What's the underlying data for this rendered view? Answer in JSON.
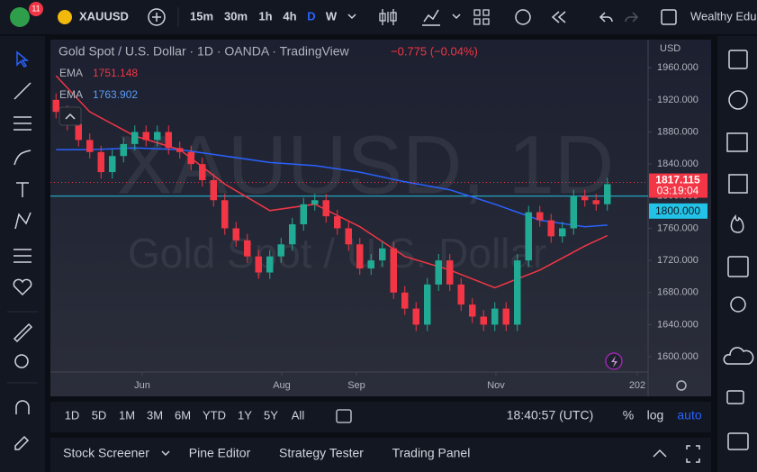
{
  "toolbar": {
    "badge": "11",
    "symbol": "XAUUSD",
    "intervals": [
      "15m",
      "30m",
      "1h",
      "4h",
      "D",
      "W"
    ],
    "account": "Wealthy Edu"
  },
  "chart_header": {
    "title": "Gold Spot / U.S. Dollar · 1D · OANDA · TradingView",
    "change": "−0.775 (−0.04%)",
    "currency": "USD",
    "watermark": [
      "XAUUSD, 1D",
      "Gold Spot / U.S. Dollar"
    ],
    "legend": [
      {
        "name": "EMA",
        "value": "1751.148"
      },
      {
        "name": "EMA",
        "value": "1763.902"
      }
    ]
  },
  "chart_data": {
    "type": "candlestick",
    "up_color": "#22ab94",
    "down_color": "#f23645",
    "open": [
      1920,
      1905,
      1890,
      1870,
      1855,
      1830,
      1850,
      1865,
      1880,
      1870,
      1880,
      1860,
      1855,
      1840,
      1820,
      1795,
      1760,
      1745,
      1725,
      1705,
      1725,
      1740,
      1765,
      1790,
      1795,
      1775,
      1760,
      1740,
      1710,
      1720,
      1735,
      1680,
      1660,
      1640,
      1690,
      1720,
      1690,
      1665,
      1650,
      1640,
      1660,
      1640,
      1720,
      1780,
      1770,
      1750,
      1760,
      1800,
      1795,
      1790
    ],
    "high": [
      1928,
      1913,
      1898,
      1878,
      1863,
      1858,
      1873,
      1888,
      1888,
      1888,
      1888,
      1868,
      1863,
      1848,
      1828,
      1803,
      1768,
      1753,
      1733,
      1733,
      1748,
      1773,
      1798,
      1803,
      1803,
      1783,
      1768,
      1748,
      1728,
      1743,
      1743,
      1688,
      1668,
      1698,
      1728,
      1728,
      1698,
      1673,
      1658,
      1668,
      1668,
      1728,
      1788,
      1788,
      1778,
      1768,
      1808,
      1808,
      1803,
      1823
    ],
    "low": [
      1897,
      1882,
      1862,
      1847,
      1822,
      1822,
      1842,
      1857,
      1862,
      1862,
      1852,
      1847,
      1832,
      1812,
      1787,
      1752,
      1737,
      1717,
      1697,
      1697,
      1717,
      1732,
      1757,
      1782,
      1767,
      1752,
      1732,
      1702,
      1702,
      1712,
      1672,
      1652,
      1632,
      1632,
      1682,
      1682,
      1657,
      1642,
      1632,
      1632,
      1632,
      1632,
      1712,
      1762,
      1742,
      1742,
      1752,
      1787,
      1782,
      1782
    ],
    "close": [
      1905,
      1890,
      1870,
      1855,
      1830,
      1850,
      1865,
      1880,
      1870,
      1880,
      1860,
      1855,
      1840,
      1820,
      1795,
      1760,
      1745,
      1725,
      1705,
      1725,
      1740,
      1765,
      1790,
      1795,
      1775,
      1760,
      1740,
      1710,
      1720,
      1735,
      1680,
      1660,
      1640,
      1690,
      1720,
      1690,
      1665,
      1650,
      1640,
      1660,
      1640,
      1720,
      1780,
      1770,
      1750,
      1760,
      1800,
      1795,
      1790,
      1815
    ],
    "series": [
      {
        "name": "EMA",
        "color": "#f23645",
        "x": [
          0,
          3,
          7,
          11,
          15,
          19,
          23,
          27,
          31,
          35,
          39,
          43,
          47,
          49
        ],
        "values": [
          1950,
          1905,
          1875,
          1858,
          1815,
          1782,
          1790,
          1762,
          1725,
          1708,
          1686,
          1708,
          1738,
          1751
        ]
      },
      {
        "name": "EMA",
        "color": "#2962ff",
        "x": [
          0,
          3,
          7,
          11,
          15,
          19,
          23,
          27,
          31,
          35,
          39,
          43,
          47,
          49
        ],
        "values": [
          1858,
          1858,
          1860,
          1858,
          1850,
          1842,
          1838,
          1830,
          1818,
          1808,
          1790,
          1770,
          1762,
          1764
        ]
      }
    ],
    "xlim": [
      -0.5,
      52.62
    ],
    "xticks": [
      {
        "value": 7.66,
        "label": "Jun"
      },
      {
        "value": 20.06,
        "label": "Aug"
      },
      {
        "value": 26.7,
        "label": "Sep"
      },
      {
        "value": 39.1,
        "label": "Nov"
      },
      {
        "value": 51.66,
        "label": "202"
      }
    ],
    "ylim": [
      1581,
      1995
    ],
    "yticks": [
      {
        "value": 1600,
        "label": "1600.000"
      },
      {
        "value": 1640,
        "label": "1640.000"
      },
      {
        "value": 1680,
        "label": "1680.000"
      },
      {
        "value": 1720,
        "label": "1720.000"
      },
      {
        "value": 1760,
        "label": "1760.000"
      },
      {
        "value": 1800,
        "label": "1800.000"
      },
      {
        "value": 1840,
        "label": "1840.000"
      },
      {
        "value": 1880,
        "label": "1880.000"
      },
      {
        "value": 1920,
        "label": "1920.000"
      },
      {
        "value": 1960,
        "label": "1960.000"
      }
    ],
    "price_line": {
      "value": 1817.115,
      "label": "1817.115",
      "countdown": "03:19:04"
    },
    "level_line": {
      "value": 1800,
      "label": "1800.000",
      "color": "#22c3e6"
    }
  },
  "bottom_bar": {
    "ranges": [
      "1D",
      "5D",
      "1M",
      "3M",
      "6M",
      "YTD",
      "1Y",
      "5Y",
      "All"
    ],
    "clock": "18:40:57 (UTC)",
    "options": [
      "%",
      "log",
      "auto"
    ]
  },
  "panel_tabs": [
    "Stock Screener",
    "Pine Editor",
    "Strategy Tester",
    "Trading Panel"
  ]
}
